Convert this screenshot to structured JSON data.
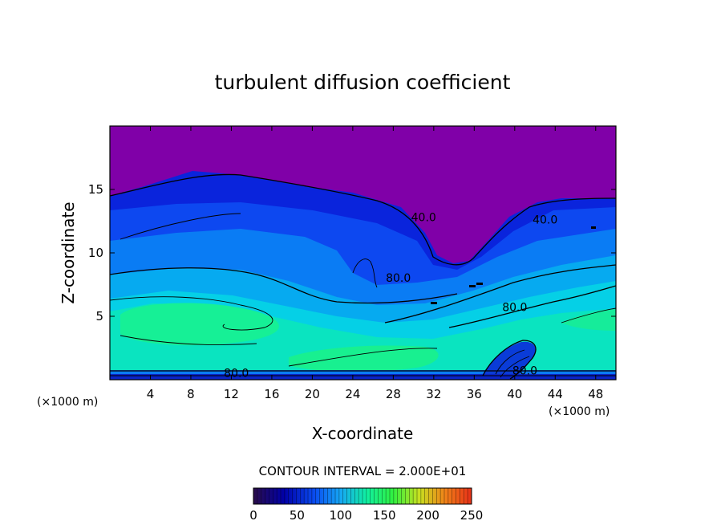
{
  "chart_data": {
    "type": "heatmap",
    "title": "turbulent diffusion coefficient",
    "xlabel": "X-coordinate",
    "ylabel": "Z-coordinate",
    "x_unit": "(×1000 m)",
    "xlim": [
      0,
      50
    ],
    "ylim": [
      0,
      20
    ],
    "x_ticks": [
      4,
      8,
      12,
      16,
      20,
      24,
      28,
      32,
      36,
      40,
      44,
      48
    ],
    "y_ticks": [
      5,
      10,
      15
    ],
    "contour_interval_label": "CONTOUR INTERVAL = 2.000E+01",
    "colorbar": {
      "ticks": [
        0,
        50,
        100,
        150,
        200,
        250
      ],
      "range": [
        0,
        250
      ],
      "colors": [
        "#2a0d4a",
        "#0000a8",
        "#0a4cf0",
        "#16a8f4",
        "#10f0a0",
        "#30f040",
        "#c8e020",
        "#f08018",
        "#e83018"
      ]
    },
    "regions": {
      "upper_layer_color": "#8000a8",
      "colors": [
        "#7f00a8",
        "#0a1ed8",
        "#0d45f0",
        "#0a78f4",
        "#06a8f0",
        "#05d0e8",
        "#0ae4c0",
        "#16f096"
      ]
    },
    "contour_labels": [
      {
        "text": "40.0",
        "x": 31.0,
        "y": 12.7
      },
      {
        "text": "40.0",
        "x": 43.0,
        "y": 12.5
      },
      {
        "text": "80.0",
        "x": 28.5,
        "y": 7.9
      },
      {
        "text": "80.0",
        "x": 40.0,
        "y": 5.6
      },
      {
        "text": "80.0",
        "x": 12.5,
        "y": 0.4
      },
      {
        "text": "80.0",
        "x": 41.0,
        "y": 0.6
      }
    ]
  }
}
